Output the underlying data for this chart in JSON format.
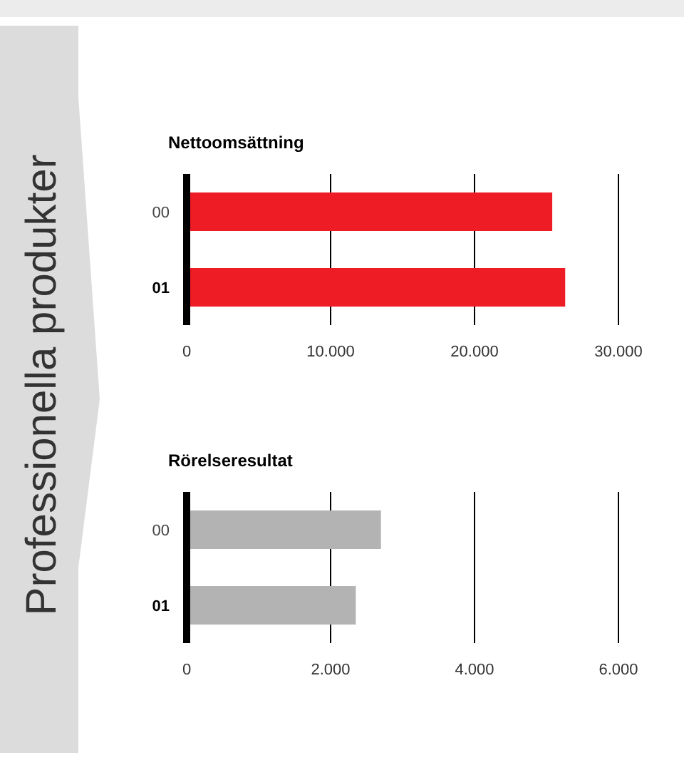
{
  "chart_data": [
    {
      "type": "bar",
      "orientation": "horizontal",
      "title": "Nettoomsättning",
      "annotations": [
        "Professionella produkter"
      ],
      "categories": [
        "00",
        "01"
      ],
      "values": [
        25400,
        26300
      ],
      "color": "#ee1c25",
      "xlim": [
        0,
        30000
      ],
      "xticks": [
        0,
        {
          "value": 10000,
          "label": "10.000"
        },
        {
          "value": 20000,
          "label": "20.000"
        },
        {
          "value": 30000,
          "label": "30.000"
        }
      ],
      "grid": "x"
    },
    {
      "type": "bar",
      "orientation": "horizontal",
      "title": "Rörelseresultat",
      "categories": [
        "00",
        "01"
      ],
      "values": [
        2700,
        2350
      ],
      "color": "#b3b3b3",
      "xlim": [
        0,
        6000
      ],
      "xticks": [
        0,
        {
          "value": 2000,
          "label": "2.000"
        },
        {
          "value": 4000,
          "label": "4.000"
        },
        {
          "value": 6000,
          "label": "6.000"
        }
      ],
      "grid": "x"
    }
  ]
}
